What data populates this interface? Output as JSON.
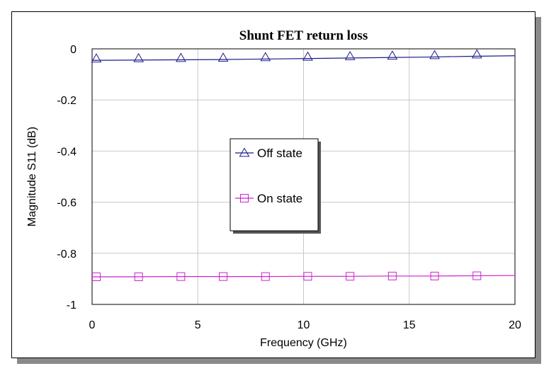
{
  "chart_data": {
    "type": "line",
    "title": "Shunt FET return loss",
    "xlabel": "Frequency (GHz)",
    "ylabel": "Magnitude S11 (dB)",
    "xlim": [
      0,
      20
    ],
    "ylim": [
      -1,
      0
    ],
    "xticks": [
      "0",
      "5",
      "10",
      "15",
      "20"
    ],
    "yticks": [
      "0",
      "-0.2",
      "-0.4",
      "-0.6",
      "-0.8",
      "-1"
    ],
    "grid": true,
    "legend_position": "center",
    "series": [
      {
        "name": "Off state",
        "color": "#1c1c8c",
        "marker": "triangle",
        "x": [
          0,
          2,
          4,
          6,
          8,
          10,
          12,
          14,
          16,
          18,
          20
        ],
        "y": [
          -0.045,
          -0.044,
          -0.043,
          -0.042,
          -0.04,
          -0.038,
          -0.036,
          -0.034,
          -0.032,
          -0.029,
          -0.027
        ],
        "marker_x": [
          0.2,
          2.2,
          4.2,
          6.2,
          8.2,
          10.2,
          12.2,
          14.2,
          16.2,
          18.2
        ],
        "marker_y": [
          -0.038,
          -0.037,
          -0.036,
          -0.035,
          -0.033,
          -0.031,
          -0.029,
          -0.027,
          -0.025,
          -0.022
        ]
      },
      {
        "name": "On state",
        "color": "#cc22cc",
        "marker": "square",
        "x": [
          0,
          2,
          4,
          6,
          8,
          10,
          12,
          14,
          16,
          18,
          20
        ],
        "y": [
          -0.892,
          -0.892,
          -0.891,
          -0.891,
          -0.891,
          -0.89,
          -0.89,
          -0.889,
          -0.889,
          -0.888,
          -0.887
        ],
        "marker_x": [
          0.2,
          2.2,
          4.2,
          6.2,
          8.2,
          10.2,
          12.2,
          14.2,
          16.2,
          18.2
        ],
        "marker_y": [
          -0.892,
          -0.892,
          -0.891,
          -0.891,
          -0.891,
          -0.89,
          -0.89,
          -0.889,
          -0.889,
          -0.888
        ]
      }
    ]
  }
}
